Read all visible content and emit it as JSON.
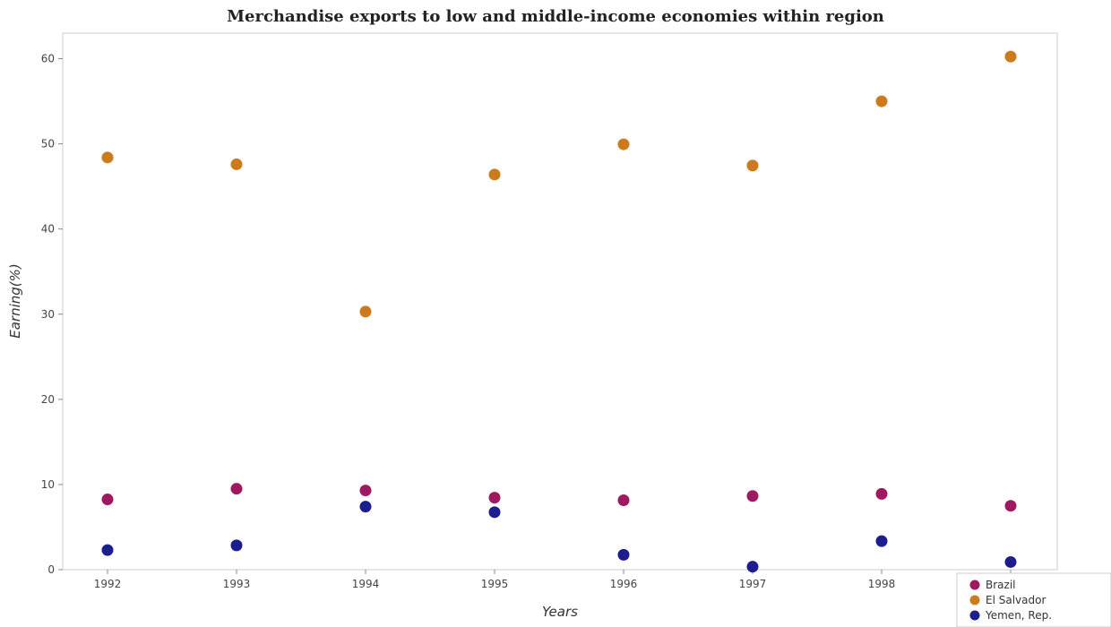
{
  "chart_data": {
    "type": "scatter",
    "title": "Merchandise exports to low and middle-income economies within region",
    "xlabel": "Years",
    "ylabel": "Earning(%)",
    "x": [
      "1992",
      "1993",
      "1994",
      "1995",
      "1996",
      "1997",
      "1998",
      "1999"
    ],
    "ylim": [
      0,
      63
    ],
    "yticks": [
      "0",
      "10",
      "20",
      "30",
      "40",
      "50",
      "60"
    ],
    "grid": false,
    "legend_position": "bottom-right",
    "series": [
      {
        "name": "Brazil",
        "color": "#a0185f",
        "values": [
          8.25,
          9.5,
          9.3,
          8.45,
          8.15,
          8.65,
          8.9,
          7.5
        ]
      },
      {
        "name": "El Salvador",
        "color": "#cc7a1a",
        "values": [
          48.4,
          47.6,
          30.3,
          46.4,
          49.95,
          47.45,
          55.0,
          60.25
        ]
      },
      {
        "name": "Yemen, Rep.",
        "color": "#1c1d8f",
        "values": [
          2.3,
          2.85,
          7.4,
          6.75,
          1.75,
          0.35,
          3.35,
          0.9
        ]
      }
    ]
  }
}
